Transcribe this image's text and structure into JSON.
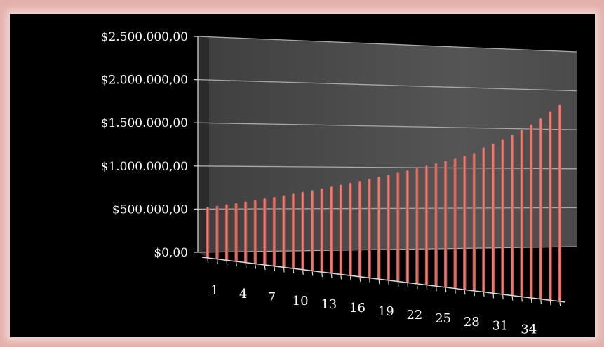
{
  "chart_data": {
    "type": "bar",
    "style": "3d-cylinder",
    "series": [
      {
        "color": "#e8766c",
        "values": [
          515000,
          530000,
          546000,
          562000,
          579000,
          597000,
          615000,
          633000,
          652000,
          672000,
          692000,
          713000,
          734000,
          756000,
          779000,
          802000,
          826000,
          851000,
          877000,
          903000,
          930000,
          958000,
          987000,
          1016000,
          1047000,
          1078000,
          1110000,
          1144000,
          1180000,
          1250000,
          1300000,
          1360000,
          1420000,
          1480000,
          1550000,
          1630000,
          1720000,
          1810000
        ]
      }
    ],
    "categories": [
      "1",
      "2",
      "3",
      "4",
      "5",
      "6",
      "7",
      "8",
      "9",
      "10",
      "11",
      "12",
      "13",
      "14",
      "15",
      "16",
      "17",
      "18",
      "19",
      "20",
      "21",
      "22",
      "23",
      "24",
      "25",
      "26",
      "27",
      "28",
      "29",
      "30",
      "31",
      "32",
      "33",
      "34",
      "35",
      "36",
      "37",
      "38"
    ],
    "x_tick_labels_shown": [
      "1",
      "4",
      "7",
      "10",
      "13",
      "16",
      "19",
      "22",
      "25",
      "28",
      "31",
      "34"
    ],
    "y_tick_labels": [
      "$0,00",
      "$500.000,00",
      "$1.000.000,00",
      "$1.500.000,00",
      "$2.000.000,00",
      "$2.500.000,00"
    ],
    "ylim": [
      0,
      2500000
    ],
    "grid": true,
    "colors": {
      "background": "#000000",
      "wall": "#4d4d4d",
      "frame": "#e4b0ab",
      "bar": "#e8766c",
      "text": "#ffffff"
    }
  }
}
